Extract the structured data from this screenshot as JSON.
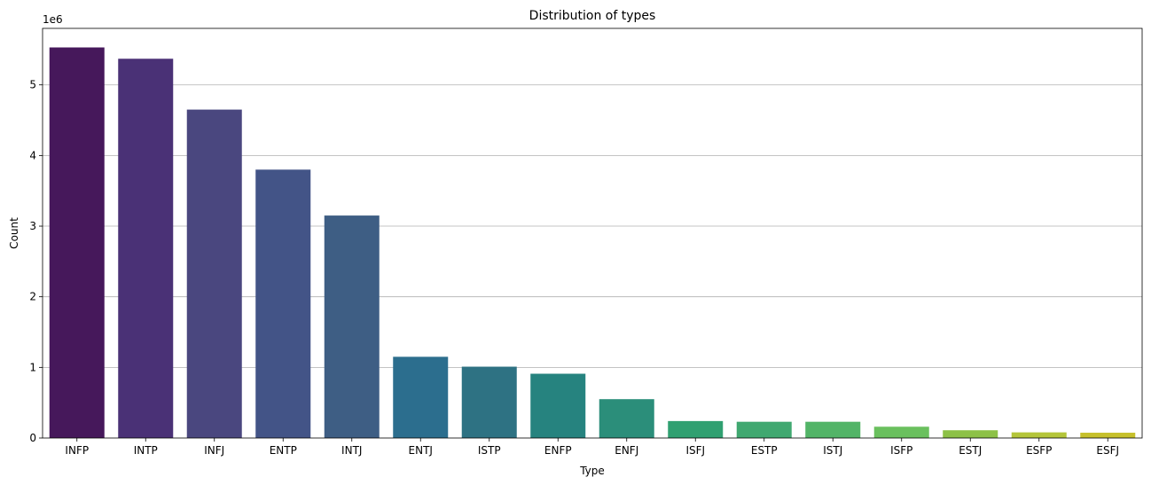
{
  "chart_data": {
    "type": "bar",
    "title": "Distribution of types",
    "xlabel": "Type",
    "ylabel": "Count",
    "scale_label": "1e6",
    "categories": [
      "INFP",
      "INTP",
      "INFJ",
      "ENTP",
      "INTJ",
      "ENTJ",
      "ISTP",
      "ENFP",
      "ENFJ",
      "ISFJ",
      "ESTP",
      "ISTJ",
      "ISFP",
      "ESTJ",
      "ESFP",
      "ESFJ"
    ],
    "values": [
      5530000,
      5370000,
      4650000,
      3800000,
      3150000,
      1150000,
      1010000,
      910000,
      550000,
      240000,
      230000,
      230000,
      160000,
      110000,
      80000,
      75000
    ],
    "ylim": [
      0,
      5800000
    ],
    "yticks": [
      0,
      1000000,
      2000000,
      3000000,
      4000000,
      5000000
    ],
    "ytick_labels": [
      "0",
      "1",
      "2",
      "3",
      "4",
      "5"
    ],
    "grid": "y",
    "colors": [
      "#46185b",
      "#4a3176",
      "#4a477f",
      "#435487",
      "#3e5e84",
      "#2c6e8e",
      "#2e7283",
      "#26837f",
      "#2b8e7a",
      "#30a071",
      "#40a870",
      "#52b467",
      "#6ac05e",
      "#8dc147",
      "#b4c53a",
      "#c6c02c"
    ]
  }
}
